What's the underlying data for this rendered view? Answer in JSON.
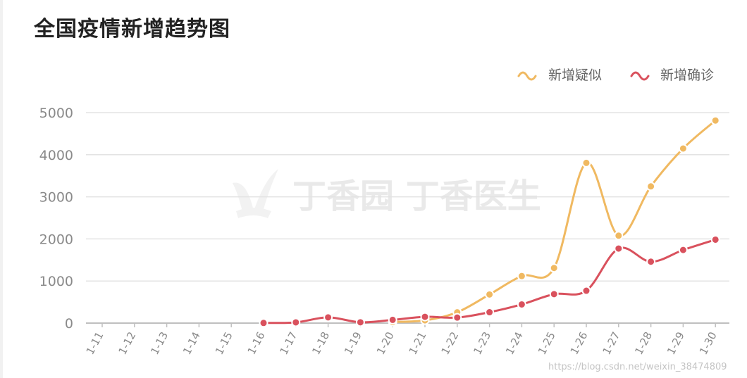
{
  "title": "全国疫情新增趋势图",
  "watermark": "丁香园 丁香医生",
  "credit": "https://blog.csdn.net/weixin_38474809",
  "colors": {
    "suspected": "#f0b961",
    "confirmed": "#d9515d",
    "grid": "#e3e3e3",
    "axis": "#bfbfbf"
  },
  "chart_data": {
    "type": "line",
    "title": "全国疫情新增趋势图",
    "categories": [
      "1-11",
      "1-12",
      "1-13",
      "1-14",
      "1-15",
      "1-16",
      "1-17",
      "1-18",
      "1-19",
      "1-20",
      "1-21",
      "1-22",
      "1-23",
      "1-24",
      "1-25",
      "1-26",
      "1-27",
      "1-28",
      "1-29",
      "1-30"
    ],
    "y_ticks": [
      "0",
      "1000",
      "2000",
      "3000",
      "4000",
      "5000"
    ],
    "ylim": [
      0,
      5000
    ],
    "grid": true,
    "legend_position": "top-right",
    "smooth": true,
    "series": [
      {
        "name": "新增疑似",
        "color": "#f0b961",
        "values": [
          null,
          null,
          null,
          null,
          null,
          null,
          null,
          null,
          null,
          27,
          65,
          257,
          680,
          1118,
          1309,
          3806,
          2077,
          3248,
          4148,
          4812
        ]
      },
      {
        "name": "新增确诊",
        "color": "#d9515d",
        "values": [
          null,
          null,
          null,
          null,
          null,
          4,
          17,
          136,
          19,
          77,
          149,
          131,
          259,
          444,
          688,
          769,
          1771,
          1459,
          1737,
          1982
        ]
      }
    ]
  }
}
